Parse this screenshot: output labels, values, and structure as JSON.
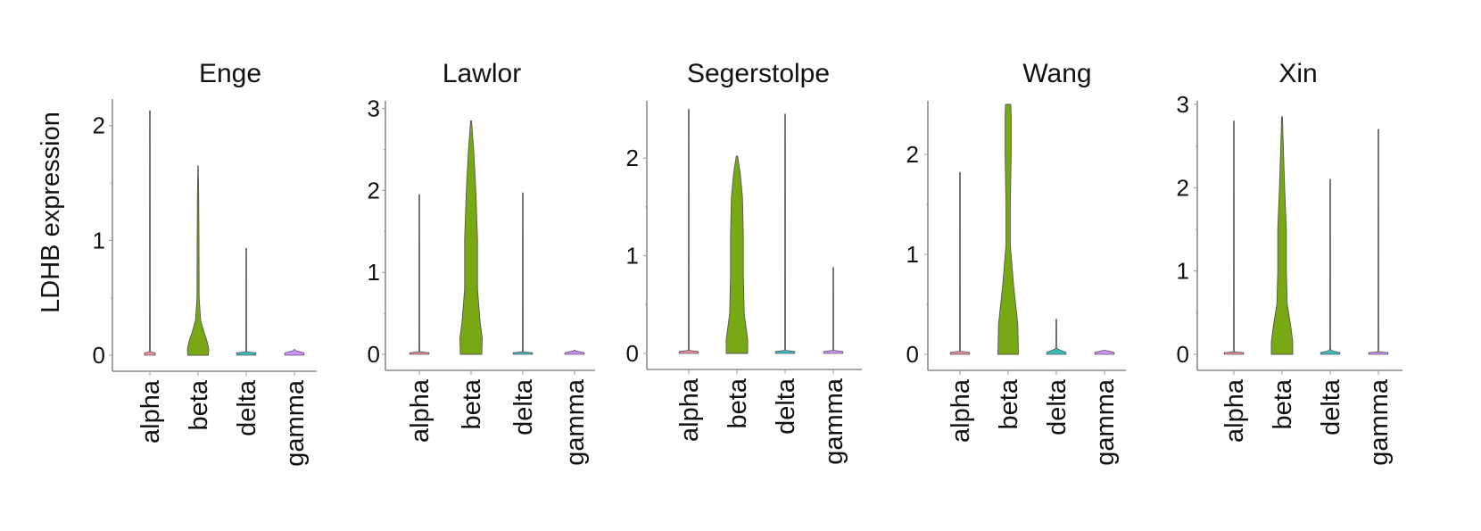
{
  "figure": {
    "ylabel": "LDHB expression"
  },
  "colors": {
    "alpha": "#e8798a",
    "beta": "#78a915",
    "delta": "#18b0b3",
    "gamma": "#c77cff",
    "outline": "#555555",
    "axis": "#8c8c8c"
  },
  "chart_data": [
    {
      "type": "violin",
      "title": "Enge",
      "xlabel": "",
      "ylabel": "LDHB expression",
      "ylim": [
        -0.05,
        2.2
      ],
      "yticks": [
        0,
        1,
        2
      ],
      "categories": [
        "alpha",
        "beta",
        "delta",
        "gamma"
      ],
      "series": [
        {
          "category": "alpha",
          "max": 2.13,
          "profile": [
            [
              0,
              0.25
            ],
            [
              0.02,
              0.25
            ],
            [
              0.03,
              0.02
            ],
            [
              2.13,
              0.015
            ]
          ]
        },
        {
          "category": "beta",
          "max": 1.65,
          "profile": [
            [
              0,
              0.48
            ],
            [
              0.05,
              0.5
            ],
            [
              0.12,
              0.42
            ],
            [
              0.2,
              0.28
            ],
            [
              0.3,
              0.12
            ],
            [
              0.5,
              0.05
            ],
            [
              1.0,
              0.04
            ],
            [
              1.4,
              0.03
            ],
            [
              1.65,
              0.01
            ]
          ]
        },
        {
          "category": "delta",
          "max": 0.93,
          "profile": [
            [
              0,
              0.45
            ],
            [
              0.02,
              0.45
            ],
            [
              0.03,
              0.02
            ],
            [
              0.93,
              0.015
            ]
          ]
        },
        {
          "category": "gamma",
          "max": 0.05,
          "profile": [
            [
              0,
              0.45
            ],
            [
              0.02,
              0.45
            ],
            [
              0.04,
              0.05
            ],
            [
              0.05,
              0.02
            ]
          ]
        }
      ]
    },
    {
      "type": "violin",
      "title": "Lawlor",
      "xlabel": "",
      "ylabel": "",
      "ylim": [
        -0.05,
        3.05
      ],
      "yticks": [
        0,
        1,
        2,
        3
      ],
      "categories": [
        "alpha",
        "beta",
        "delta",
        "gamma"
      ],
      "series": [
        {
          "category": "alpha",
          "max": 1.95,
          "profile": [
            [
              0,
              0.45
            ],
            [
              0.02,
              0.45
            ],
            [
              0.03,
              0.02
            ],
            [
              1.95,
              0.015
            ]
          ]
        },
        {
          "category": "beta",
          "max": 2.85,
          "profile": [
            [
              0,
              0.5
            ],
            [
              0.2,
              0.52
            ],
            [
              0.4,
              0.42
            ],
            [
              0.8,
              0.3
            ],
            [
              1.4,
              0.3
            ],
            [
              2.0,
              0.22
            ],
            [
              2.5,
              0.12
            ],
            [
              2.85,
              0.02
            ]
          ]
        },
        {
          "category": "delta",
          "max": 1.97,
          "profile": [
            [
              0,
              0.45
            ],
            [
              0.02,
              0.45
            ],
            [
              0.03,
              0.02
            ],
            [
              1.97,
              0.015
            ]
          ]
        },
        {
          "category": "gamma",
          "max": 0.05,
          "profile": [
            [
              0,
              0.45
            ],
            [
              0.02,
              0.45
            ],
            [
              0.04,
              0.05
            ],
            [
              0.05,
              0.02
            ]
          ]
        }
      ]
    },
    {
      "type": "violin",
      "title": "Segerstolpe",
      "xlabel": "",
      "ylabel": "",
      "ylim": [
        -0.05,
        2.55
      ],
      "yticks": [
        0,
        1,
        2
      ],
      "categories": [
        "alpha",
        "beta",
        "delta",
        "gamma"
      ],
      "series": [
        {
          "category": "alpha",
          "max": 2.5,
          "profile": [
            [
              0,
              0.45
            ],
            [
              0.02,
              0.45
            ],
            [
              0.03,
              0.02
            ],
            [
              2.5,
              0.015
            ]
          ]
        },
        {
          "category": "beta",
          "max": 2.02,
          "profile": [
            [
              0,
              0.5
            ],
            [
              0.15,
              0.5
            ],
            [
              0.4,
              0.34
            ],
            [
              0.8,
              0.3
            ],
            [
              1.2,
              0.3
            ],
            [
              1.6,
              0.26
            ],
            [
              1.85,
              0.15
            ],
            [
              2.02,
              0.03
            ]
          ]
        },
        {
          "category": "delta",
          "max": 2.45,
          "profile": [
            [
              0,
              0.45
            ],
            [
              0.02,
              0.45
            ],
            [
              0.03,
              0.02
            ],
            [
              2.45,
              0.015
            ]
          ]
        },
        {
          "category": "gamma",
          "max": 0.88,
          "profile": [
            [
              0,
              0.45
            ],
            [
              0.02,
              0.45
            ],
            [
              0.03,
              0.02
            ],
            [
              0.88,
              0.015
            ]
          ]
        }
      ]
    },
    {
      "type": "violin",
      "title": "Wang",
      "xlabel": "",
      "ylabel": "",
      "ylim": [
        -0.05,
        2.5
      ],
      "yticks": [
        0,
        1,
        2
      ],
      "categories": [
        "alpha",
        "beta",
        "delta",
        "gamma"
      ],
      "series": [
        {
          "category": "alpha",
          "max": 1.82,
          "profile": [
            [
              0,
              0.45
            ],
            [
              0.02,
              0.45
            ],
            [
              0.03,
              0.02
            ],
            [
              1.82,
              0.015
            ]
          ]
        },
        {
          "category": "beta",
          "max": 2.5,
          "profile": [
            [
              0,
              0.48
            ],
            [
              0.3,
              0.45
            ],
            [
              0.7,
              0.25
            ],
            [
              1.1,
              0.1
            ],
            [
              1.5,
              0.1
            ],
            [
              2.0,
              0.14
            ],
            [
              2.4,
              0.14
            ],
            [
              2.5,
              0.12
            ]
          ]
        },
        {
          "category": "delta",
          "max": 0.35,
          "profile": [
            [
              0,
              0.45
            ],
            [
              0.02,
              0.45
            ],
            [
              0.04,
              0.2
            ],
            [
              0.05,
              0.1
            ],
            [
              0.06,
              0.02
            ],
            [
              0.35,
              0.015
            ]
          ]
        },
        {
          "category": "gamma",
          "max": 0.04,
          "profile": [
            [
              0,
              0.45
            ],
            [
              0.02,
              0.45
            ],
            [
              0.04,
              0.02
            ]
          ]
        }
      ]
    },
    {
      "type": "violin",
      "title": "Xin",
      "xlabel": "",
      "ylabel": "",
      "ylim": [
        -0.05,
        3.0
      ],
      "yticks": [
        0,
        1,
        2,
        3
      ],
      "categories": [
        "alpha",
        "beta",
        "delta",
        "gamma"
      ],
      "series": [
        {
          "category": "alpha",
          "max": 2.8,
          "profile": [
            [
              0,
              0.45
            ],
            [
              0.02,
              0.45
            ],
            [
              0.03,
              0.02
            ],
            [
              2.8,
              0.015
            ]
          ]
        },
        {
          "category": "beta",
          "max": 2.85,
          "profile": [
            [
              0,
              0.5
            ],
            [
              0.15,
              0.5
            ],
            [
              0.35,
              0.4
            ],
            [
              0.6,
              0.24
            ],
            [
              1.0,
              0.2
            ],
            [
              1.5,
              0.2
            ],
            [
              2.0,
              0.12
            ],
            [
              2.5,
              0.06
            ],
            [
              2.85,
              0.02
            ]
          ]
        },
        {
          "category": "delta",
          "max": 2.1,
          "profile": [
            [
              0,
              0.45
            ],
            [
              0.02,
              0.45
            ],
            [
              0.04,
              0.12
            ],
            [
              0.06,
              0.02
            ],
            [
              2.1,
              0.015
            ]
          ]
        },
        {
          "category": "gamma",
          "max": 2.7,
          "profile": [
            [
              0,
              0.45
            ],
            [
              0.02,
              0.45
            ],
            [
              0.03,
              0.02
            ],
            [
              2.7,
              0.015
            ]
          ]
        }
      ]
    }
  ]
}
